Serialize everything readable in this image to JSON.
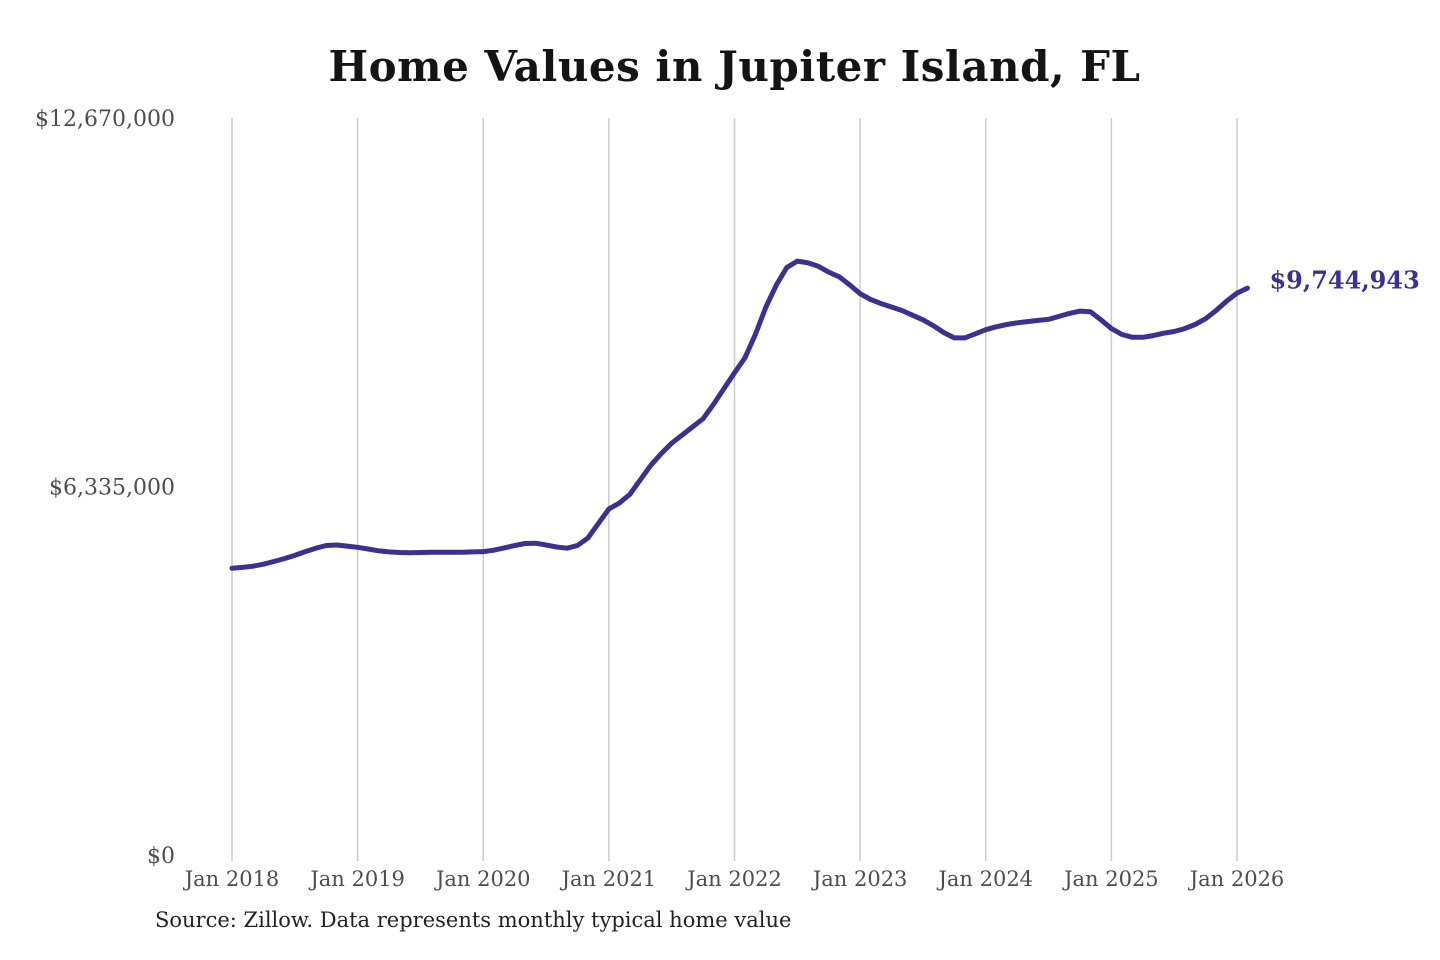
{
  "colors": {
    "background": "#ffffff",
    "accent": "#3a3191",
    "line": "#3a3191",
    "gridline": "#cccccc",
    "axis_label": "#4d4d4d",
    "title_text": "#141414",
    "source_text": "#222222"
  },
  "chart_data": {
    "type": "line",
    "title": "Home Values in Jupiter Island, FL",
    "source_note": "Source: Zillow. Data represents monthly typical home value",
    "xlabel": "",
    "ylabel": "",
    "ylim": [
      0,
      12670000
    ],
    "grid": "vertical-only",
    "legend": "none",
    "latest_value": 9744943,
    "latest_value_label": "$9,744,943",
    "y_ticks": [
      {
        "value": 0,
        "label": "$0"
      },
      {
        "value": 6335000,
        "label": "$6,335,000"
      },
      {
        "value": 12670000,
        "label": "$12,670,000"
      }
    ],
    "x_tick_labels": [
      "Jan 2018",
      "Jan 2019",
      "Jan 2020",
      "Jan 2021",
      "Jan 2022",
      "Jan 2023",
      "Jan 2024",
      "Jan 2025",
      "Jan 2026"
    ],
    "x": [
      "2018-01",
      "2018-02",
      "2018-03",
      "2018-04",
      "2018-05",
      "2018-06",
      "2018-07",
      "2018-08",
      "2018-09",
      "2018-10",
      "2018-11",
      "2018-12",
      "2019-01",
      "2019-02",
      "2019-03",
      "2019-04",
      "2019-05",
      "2019-06",
      "2019-07",
      "2019-08",
      "2019-09",
      "2019-10",
      "2019-11",
      "2019-12",
      "2020-01",
      "2020-02",
      "2020-03",
      "2020-04",
      "2020-05",
      "2020-06",
      "2020-07",
      "2020-08",
      "2020-09",
      "2020-10",
      "2020-11",
      "2020-12",
      "2021-01",
      "2021-02",
      "2021-03",
      "2021-04",
      "2021-05",
      "2021-06",
      "2021-07",
      "2021-08",
      "2021-09",
      "2021-10",
      "2021-11",
      "2021-12",
      "2022-01",
      "2022-02",
      "2022-03",
      "2022-04",
      "2022-05",
      "2022-06",
      "2022-07",
      "2022-08",
      "2022-09",
      "2022-10",
      "2022-11",
      "2022-12",
      "2023-01",
      "2023-02",
      "2023-03",
      "2023-04",
      "2023-05",
      "2023-06",
      "2023-07",
      "2023-08",
      "2023-09",
      "2023-10",
      "2023-11",
      "2023-12",
      "2024-01",
      "2024-02",
      "2024-03",
      "2024-04",
      "2024-05",
      "2024-06",
      "2024-07",
      "2024-08",
      "2024-09",
      "2024-10",
      "2024-11",
      "2024-12",
      "2025-01",
      "2025-02",
      "2025-03",
      "2025-04",
      "2025-05",
      "2025-06",
      "2025-07",
      "2025-08",
      "2025-09",
      "2025-10",
      "2025-11",
      "2025-12",
      "2026-01",
      "2026-02"
    ],
    "values": [
      4930000,
      4945000,
      4965000,
      5000000,
      5045000,
      5095000,
      5150000,
      5215000,
      5275000,
      5320000,
      5330000,
      5310000,
      5290000,
      5260000,
      5230000,
      5210000,
      5200000,
      5195000,
      5200000,
      5205000,
      5205000,
      5205000,
      5205000,
      5210000,
      5215000,
      5240000,
      5280000,
      5320000,
      5355000,
      5360000,
      5330000,
      5295000,
      5275000,
      5320000,
      5450000,
      5700000,
      5950000,
      6050000,
      6200000,
      6450000,
      6700000,
      6900000,
      7080000,
      7220000,
      7360000,
      7500000,
      7750000,
      8020000,
      8290000,
      8550000,
      8950000,
      9420000,
      9800000,
      10100000,
      10210000,
      10180000,
      10120000,
      10020000,
      9940000,
      9800000,
      9650000,
      9550000,
      9480000,
      9420000,
      9360000,
      9280000,
      9200000,
      9100000,
      8980000,
      8890000,
      8890000,
      8960000,
      9030000,
      9080000,
      9120000,
      9150000,
      9170000,
      9190000,
      9210000,
      9260000,
      9310000,
      9350000,
      9340000,
      9200000,
      9050000,
      8950000,
      8900000,
      8900000,
      8930000,
      8970000,
      9000000,
      9050000,
      9120000,
      9220000,
      9360000,
      9520000,
      9660000,
      9744943
    ]
  }
}
